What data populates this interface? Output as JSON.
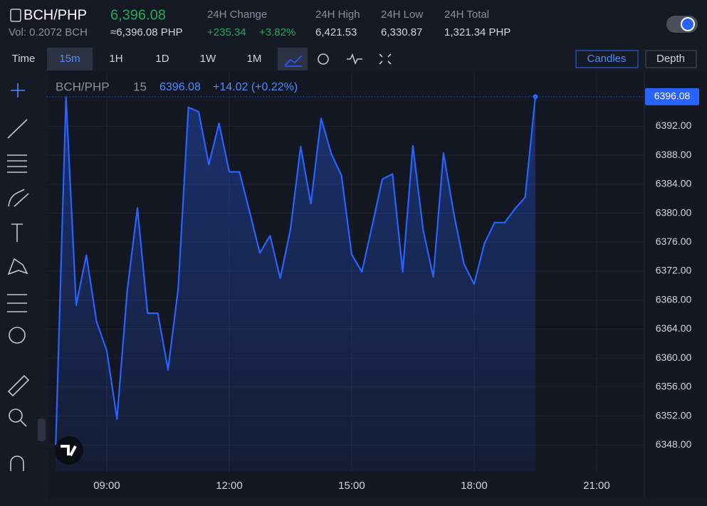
{
  "header": {
    "symbol": "BCH/PHP",
    "price": "6,396.08",
    "volume": "Vol: 0.2072 BCH",
    "approx": "≈6,396.08 PHP",
    "stats": [
      {
        "label": "24H Change",
        "value": "+235.34",
        "extra": "+3.82%"
      },
      {
        "label": "24H High",
        "value": "6,421.53"
      },
      {
        "label": "24H Low",
        "value": "6,330.87"
      },
      {
        "label": "24H Total",
        "value": "1,321.34 PHP"
      }
    ]
  },
  "toolbar": {
    "intervals": [
      "Time",
      "15m",
      "1H",
      "1D",
      "1W",
      "1M"
    ],
    "views": [
      "Candles",
      "Depth"
    ]
  },
  "chart_data": {
    "type": "line",
    "symbol": "BCH/PHP",
    "interval": "15",
    "last": "6396.08",
    "change": "+14.02 (+0.22%)",
    "last_price": {
      "value": 6396.08,
      "label": "6396.08"
    },
    "color": "#2962ff",
    "grid": true,
    "x": [
      7.75,
      8,
      8.25,
      8.5,
      8.75,
      9,
      9.25,
      9.5,
      9.75,
      10,
      10.25,
      10.5,
      10.75,
      11,
      11.25,
      11.5,
      11.75,
      12,
      12.25,
      12.5,
      12.75,
      13,
      13.25,
      13.5,
      13.75,
      14,
      14.25,
      14.5,
      14.75,
      15,
      15.25,
      15.5,
      15.75,
      16,
      16.25,
      16.5,
      16.75,
      17,
      17.25,
      17.5,
      17.75,
      18,
      18.25,
      18.5,
      18.75,
      19,
      19.25,
      19.5
    ],
    "values": [
      6348.0,
      6396.0,
      6367.3,
      6374.2,
      6365.0,
      6361.0,
      6351.6,
      6369.3,
      6380.7,
      6366.2,
      6366.2,
      6358.4,
      6369.6,
      6394.6,
      6394.0,
      6386.7,
      6392.4,
      6385.7,
      6385.7,
      6380.2,
      6374.5,
      6376.9,
      6371.0,
      6377.8,
      6389.2,
      6381.3,
      6393.1,
      6388.2,
      6385.2,
      6374.3,
      6371.9,
      6378.2,
      6384.7,
      6385.4,
      6371.9,
      6389.3,
      6377.7,
      6371.2,
      6388.3,
      6380.0,
      6373.0,
      6370.2,
      6375.8,
      6378.7,
      6378.7,
      6380.6,
      6382.2,
      6396.08
    ],
    "xlim": [
      7.535,
      22.17
    ],
    "ylim": [
      6344.4,
      6399.6
    ],
    "xticks": [
      {
        "value": 9,
        "label": "09:00"
      },
      {
        "value": 12,
        "label": "12:00"
      },
      {
        "value": 15,
        "label": "15:00"
      },
      {
        "value": 18,
        "label": "18:00"
      },
      {
        "value": 21,
        "label": "21:00"
      }
    ],
    "yticks": [
      {
        "value": 6348,
        "label": "6348.00"
      },
      {
        "value": 6352,
        "label": "6352.00"
      },
      {
        "value": 6356,
        "label": "6356.00"
      },
      {
        "value": 6360,
        "label": "6360.00"
      },
      {
        "value": 6364,
        "label": "6364.00"
      },
      {
        "value": 6368,
        "label": "6368.00"
      },
      {
        "value": 6372,
        "label": "6372.00"
      },
      {
        "value": 6376,
        "label": "6376.00"
      },
      {
        "value": 6380,
        "label": "6380.00"
      },
      {
        "value": 6384,
        "label": "6384.00"
      },
      {
        "value": 6388,
        "label": "6388.00"
      },
      {
        "value": 6392,
        "label": "6392.00"
      }
    ]
  }
}
